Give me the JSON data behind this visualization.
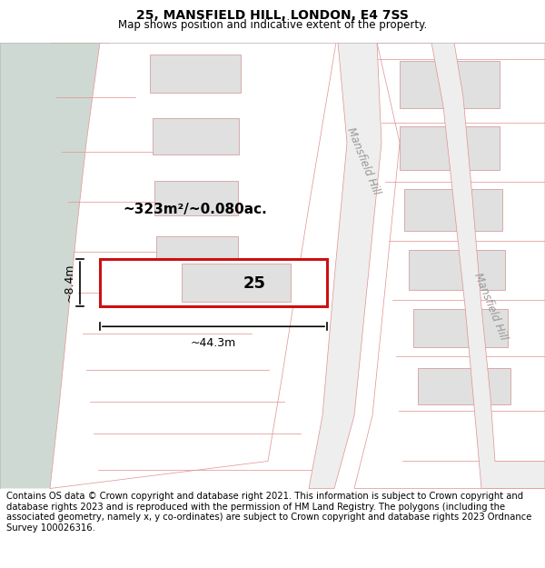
{
  "title": "25, MANSFIELD HILL, LONDON, E4 7SS",
  "subtitle": "Map shows position and indicative extent of the property.",
  "footer": "Contains OS data © Crown copyright and database right 2021. This information is subject to Crown copyright and database rights 2023 and is reproduced with the permission of HM Land Registry. The polygons (including the associated geometry, namely x, y co-ordinates) are subject to Crown copyright and database rights 2023 Ordnance Survey 100026316.",
  "green_bg": "#cfd9d3",
  "map_bg": "#f7f7f7",
  "white_plot": "#ffffff",
  "house_fill": "#e0e0e0",
  "house_edge": "#d09090",
  "plot_edge": "#e09090",
  "road_fill": "#eeeeee",
  "subject_red": "#cc1111",
  "subject_label": "25",
  "area_label": "~323m²/~0.080ac.",
  "width_label": "~44.3m",
  "height_label": "~8.4m",
  "road_label": "Mansfield Hill",
  "title_fontsize": 10,
  "subtitle_fontsize": 8.5,
  "footer_fontsize": 7.2,
  "label_fontsize": 9,
  "number_fontsize": 13
}
